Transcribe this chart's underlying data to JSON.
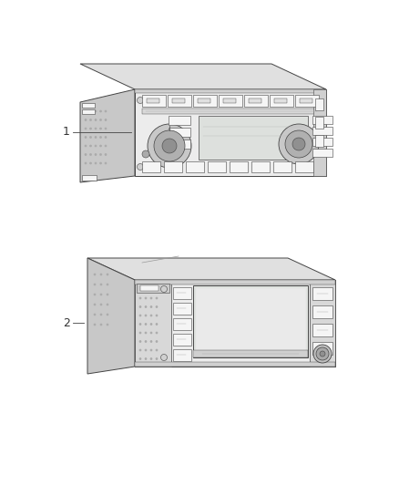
{
  "bg_color": "#ffffff",
  "line_color": "#444444",
  "face_color": "#ececec",
  "side_color": "#d0d0d0",
  "top_color": "#e0e0e0",
  "left_side_color": "#c8c8c8",
  "grille_color": "#aaaaaa",
  "button_color": "#f5f5f5",
  "screen_color": "#e8e8e8",
  "dark_gray": "#888888",
  "label_color": "#333333",
  "item1_label": "1",
  "item2_label": "2",
  "lw_main": 0.7,
  "lw_detail": 0.4
}
